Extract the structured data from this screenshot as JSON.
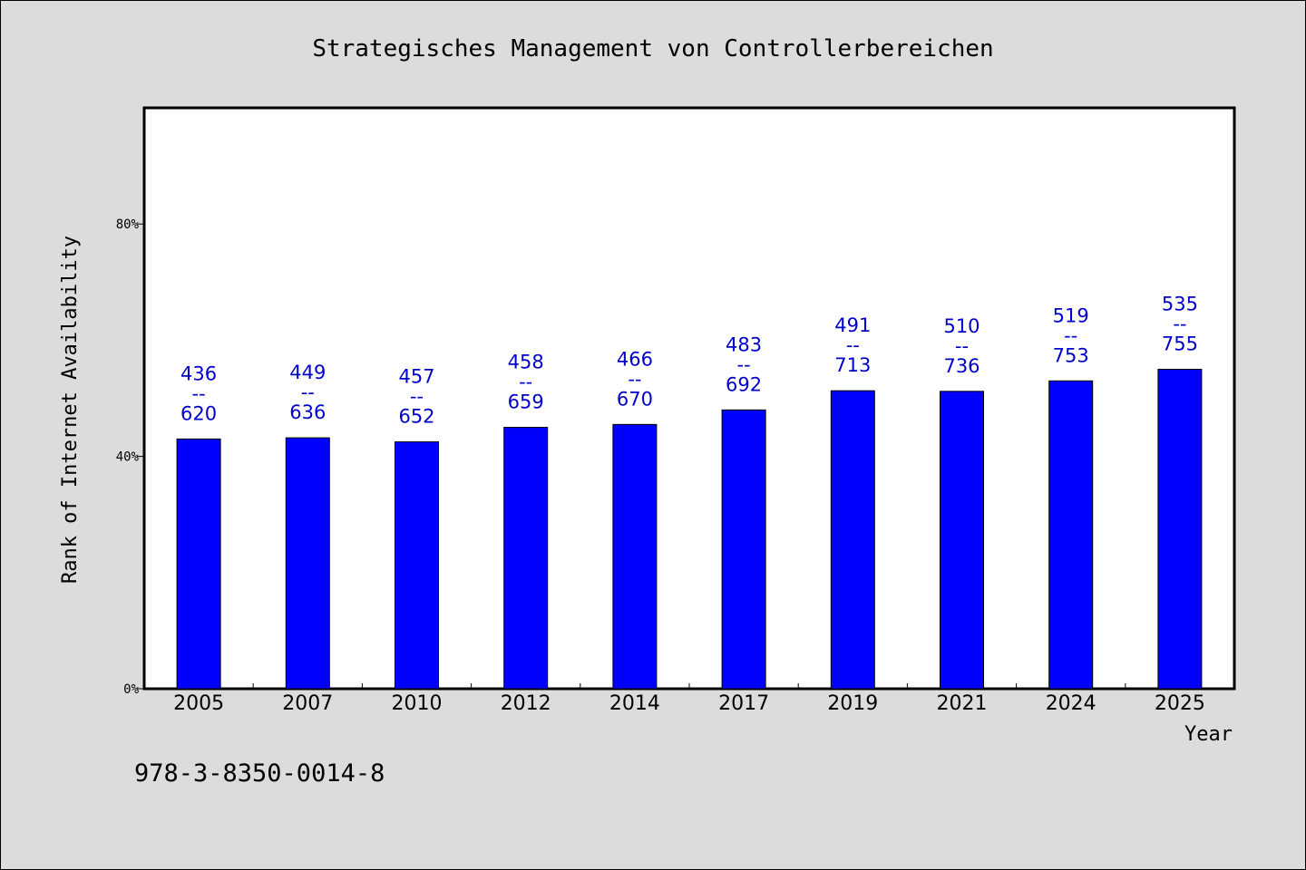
{
  "chart_data": {
    "type": "bar",
    "title": "Strategisches Management von Controllerbereichen",
    "xlabel": "Year",
    "ylabel": "Rank of Internet Availability",
    "categories": [
      "2005",
      "2007",
      "2010",
      "2012",
      "2014",
      "2017",
      "2019",
      "2021",
      "2024",
      "2025"
    ],
    "series": [
      {
        "values": [
          43,
          43.2,
          42.5,
          45,
          45.5,
          48,
          51.3,
          51.2,
          53,
          55
        ]
      }
    ],
    "data_labels": [
      {
        "top": "436",
        "sep": "--",
        "bottom": "620"
      },
      {
        "top": "449",
        "sep": "--",
        "bottom": "636"
      },
      {
        "top": "457",
        "sep": "--",
        "bottom": "652"
      },
      {
        "top": "458",
        "sep": "--",
        "bottom": "659"
      },
      {
        "top": "466",
        "sep": "--",
        "bottom": "670"
      },
      {
        "top": "483",
        "sep": "--",
        "bottom": "692"
      },
      {
        "top": "491",
        "sep": "--",
        "bottom": "713"
      },
      {
        "top": "510",
        "sep": "--",
        "bottom": "736"
      },
      {
        "top": "519",
        "sep": "--",
        "bottom": "753"
      },
      {
        "top": "535",
        "sep": "--",
        "bottom": "755"
      }
    ],
    "ylim": [
      0,
      100
    ],
    "yticks": [
      0,
      40,
      80
    ],
    "ytick_labels": [
      "0%",
      "40%",
      "80%"
    ],
    "grid": false,
    "legend": "none",
    "colors": {
      "bar": "#0000ff",
      "label": "#0000cc",
      "background": "#dcdcdc",
      "plot_background": "#ffffff"
    }
  },
  "footer_text": "978-3-8350-0014-8"
}
